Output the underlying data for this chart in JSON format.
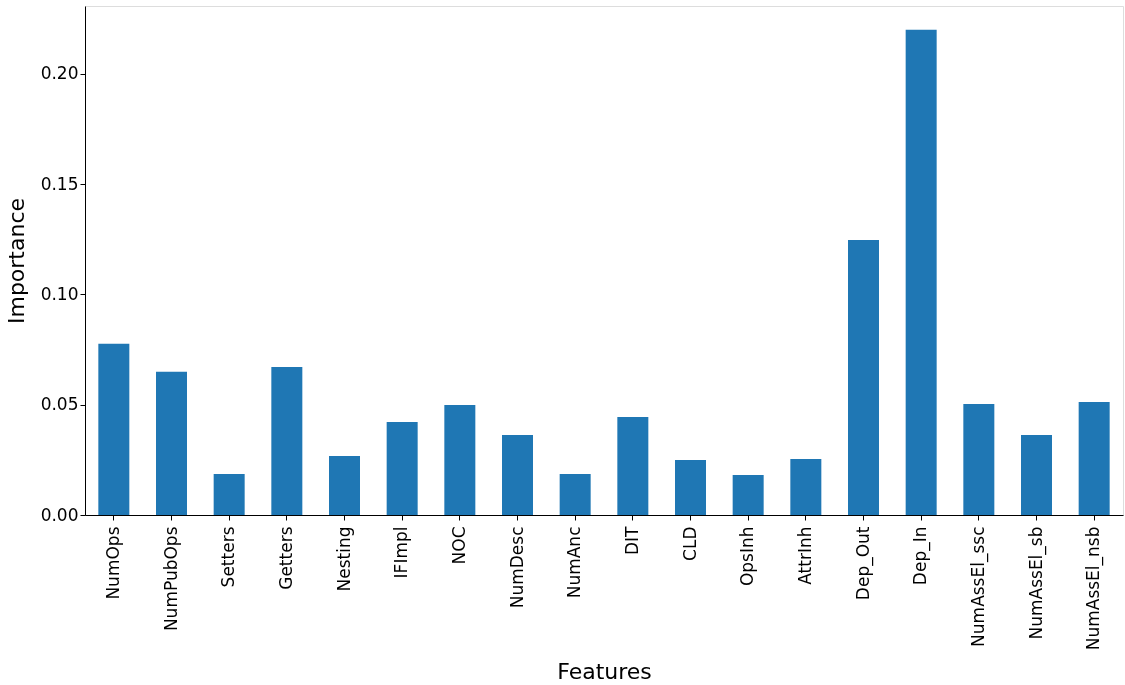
{
  "chart_data": {
    "type": "bar",
    "xlabel": "Features",
    "ylabel": "Importance",
    "categories": [
      "NumOps",
      "NumPubOps",
      "Setters",
      "Getters",
      "Nesting",
      "IFImpl",
      "NOC",
      "NumDesc",
      "NumAnc",
      "DIT",
      "CLD",
      "OpsInh",
      "AttrInh",
      "Dep_Out",
      "Dep_In",
      "NumAssEl_ssc",
      "NumAssEl_sb",
      "NumAssEl_nsb"
    ],
    "values": [
      0.0776,
      0.0649,
      0.0186,
      0.0671,
      0.0268,
      0.0422,
      0.0499,
      0.0363,
      0.0186,
      0.0444,
      0.0249,
      0.0181,
      0.0254,
      0.1247,
      0.22,
      0.0503,
      0.0363,
      0.0512
    ],
    "color": "#1f77b4",
    "ylim": [
      0,
      0.2308
    ],
    "yticks": [
      {
        "value": 0,
        "label": "0.00"
      },
      {
        "value": 0.05,
        "label": "0.05"
      },
      {
        "value": 0.1,
        "label": "0.10"
      },
      {
        "value": 0.15,
        "label": "0.15"
      },
      {
        "value": 0.2,
        "label": "0.20"
      }
    ],
    "grid": false
  }
}
